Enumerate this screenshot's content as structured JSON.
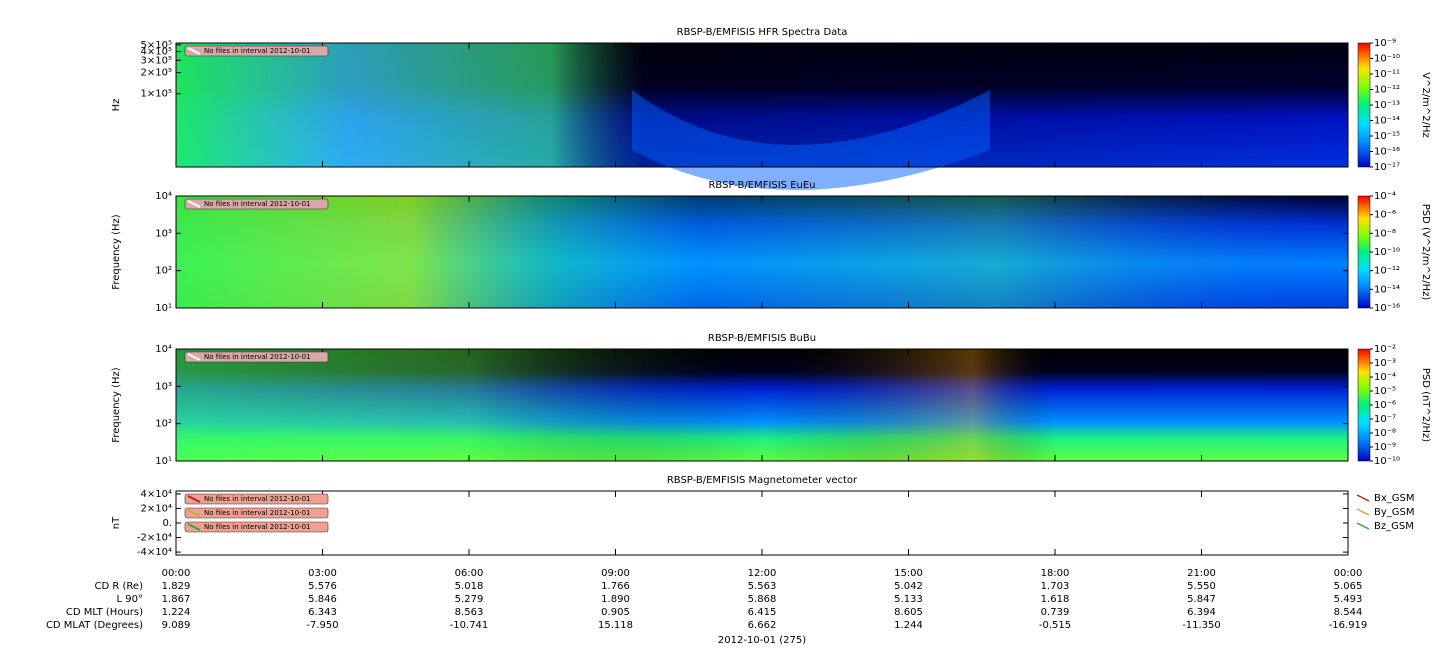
{
  "chart_data": [
    {
      "type": "spectrogram",
      "title": "RBSP-B/EMFISIS  HFR Spectra Data",
      "ylabel": "Hz",
      "ylog": true,
      "ylim": [
        9000,
        530000
      ],
      "yticks": [
        {
          "value": 500000,
          "label": "5×10⁵"
        },
        {
          "value": 400000,
          "label": "4×10⁵"
        },
        {
          "value": 300000,
          "label": "3×10⁵"
        },
        {
          "value": 200000,
          "label": "2×10⁵"
        },
        {
          "value": 100000,
          "label": "1×10⁵"
        }
      ],
      "colorbar_label": "V^2/m^2/Hz",
      "clog": true,
      "clim": [
        1e-17,
        1e-09
      ],
      "cticks": [
        {
          "value": 1e-09,
          "label": "10⁻⁹"
        },
        {
          "value": 1e-10,
          "label": "10⁻¹⁰"
        },
        {
          "value": 1e-11,
          "label": "10⁻¹¹"
        },
        {
          "value": 1e-12,
          "label": "10⁻¹²"
        },
        {
          "value": 1e-13,
          "label": "10⁻¹³"
        },
        {
          "value": 1e-14,
          "label": "10⁻¹⁴"
        },
        {
          "value": 1e-15,
          "label": "10⁻¹⁵"
        },
        {
          "value": 1e-16,
          "label": "10⁻¹⁶"
        },
        {
          "value": 1e-17,
          "label": "10⁻¹⁷"
        }
      ],
      "notes": [
        "No files in interval 2012-10-01"
      ]
    },
    {
      "type": "spectrogram",
      "title": "RBSP-B/EMFISIS  EuEu",
      "ylabel": "Frequency (Hz)",
      "ylog": true,
      "ylim": [
        10,
        10000
      ],
      "yticks": [
        {
          "value": 10000,
          "label": "10⁴"
        },
        {
          "value": 1000,
          "label": "10³"
        },
        {
          "value": 100,
          "label": "10²"
        },
        {
          "value": 10,
          "label": "10¹"
        }
      ],
      "colorbar_label": "PSD (V^2/m^2/Hz)",
      "clog": true,
      "clim": [
        1e-16,
        0.0001
      ],
      "cticks": [
        {
          "value": 0.0001,
          "label": "10⁻⁴"
        },
        {
          "value": 1e-06,
          "label": "10⁻⁶"
        },
        {
          "value": 1e-08,
          "label": "10⁻⁸"
        },
        {
          "value": 1e-10,
          "label": "10⁻¹⁰"
        },
        {
          "value": 1e-12,
          "label": "10⁻¹²"
        },
        {
          "value": 1e-14,
          "label": "10⁻¹⁴"
        },
        {
          "value": 1e-16,
          "label": "10⁻¹⁶"
        }
      ],
      "notes": [
        "No files in interval 2012-10-01"
      ]
    },
    {
      "type": "spectrogram",
      "title": "RBSP-B/EMFISIS  BuBu",
      "ylabel": "Frequency (Hz)",
      "ylog": true,
      "ylim": [
        10,
        10000
      ],
      "yticks": [
        {
          "value": 10000,
          "label": "10⁴"
        },
        {
          "value": 1000,
          "label": "10³"
        },
        {
          "value": 100,
          "label": "10²"
        },
        {
          "value": 10,
          "label": "10¹"
        }
      ],
      "colorbar_label": "PSD (nT^2/Hz)",
      "clog": true,
      "clim": [
        1e-10,
        0.01
      ],
      "cticks": [
        {
          "value": 0.01,
          "label": "10⁻²"
        },
        {
          "value": 0.001,
          "label": "10⁻³"
        },
        {
          "value": 0.0001,
          "label": "10⁻⁴"
        },
        {
          "value": 1e-05,
          "label": "10⁻⁵"
        },
        {
          "value": 1e-06,
          "label": "10⁻⁶"
        },
        {
          "value": 1e-07,
          "label": "10⁻⁷"
        },
        {
          "value": 1e-08,
          "label": "10⁻⁸"
        },
        {
          "value": 1e-09,
          "label": "10⁻⁹"
        },
        {
          "value": 1e-10,
          "label": "10⁻¹⁰"
        }
      ],
      "notes": [
        "No files in interval 2012-10-01"
      ]
    },
    {
      "type": "line",
      "title": "RBSP-B/EMFISIS  Magnetometer vector",
      "ylabel": "nT",
      "ylog": false,
      "ylim": [
        -44000,
        44000
      ],
      "yticks": [
        {
          "value": 40000,
          "label": "4×10⁴"
        },
        {
          "value": 20000,
          "label": "2×10⁴"
        },
        {
          "value": 0,
          "label": "0."
        },
        {
          "value": -20000,
          "label": "-2×10⁴"
        },
        {
          "value": -40000,
          "label": "-4×10⁴"
        }
      ],
      "series": [
        {
          "name": "Bx_GSM",
          "color": "#b3262a"
        },
        {
          "name": "By_GSM",
          "color": "#c8a840"
        },
        {
          "name": "Bz_GSM",
          "color": "#2fa838"
        }
      ],
      "notes": [
        "No files in interval 2012-10-01",
        "No files in interval 2012-10-01",
        "No files in interval 2012-10-01"
      ]
    }
  ],
  "xaxis": {
    "xlim": [
      0,
      24
    ],
    "xticks": [
      {
        "value": 0,
        "label": "00:00"
      },
      {
        "value": 3,
        "label": "03:00"
      },
      {
        "value": 6,
        "label": "06:00"
      },
      {
        "value": 9,
        "label": "09:00"
      },
      {
        "value": 12,
        "label": "12:00"
      },
      {
        "value": 15,
        "label": "15:00"
      },
      {
        "value": 18,
        "label": "18:00"
      },
      {
        "value": 21,
        "label": "21:00"
      },
      {
        "value": 24,
        "label": "00:00"
      }
    ],
    "ephemeris": [
      {
        "label": "CD R (Re)",
        "values": [
          "1.829",
          "5.576",
          "5.018",
          "1.766",
          "5.563",
          "5.042",
          "1.703",
          "5.550",
          "5.065"
        ]
      },
      {
        "label": "L 90°",
        "values": [
          "1.867",
          "5.846",
          "5.279",
          "1.890",
          "5.868",
          "5.133",
          "1.618",
          "5.847",
          "5.493"
        ]
      },
      {
        "label": "CD MLT (Hours)",
        "values": [
          "1.224",
          "6.343",
          "8.563",
          "0.905",
          "6.415",
          "8.605",
          "0.739",
          "6.394",
          "8.544"
        ]
      },
      {
        "label": "CD MLAT (Degrees)",
        "values": [
          "9.089",
          "-7.950",
          "-10.741",
          "15.118",
          "6.662",
          "1.244",
          "-0.515",
          "-11.350",
          "-16.919"
        ]
      }
    ],
    "date_label": "2012-10-01 (275)"
  }
}
